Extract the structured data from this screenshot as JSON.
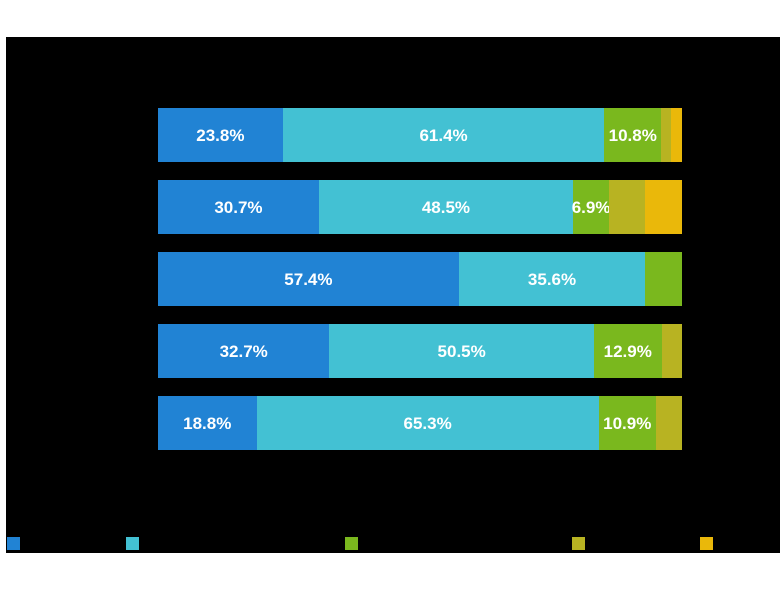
{
  "figure": {
    "background_color": "#ffffff",
    "plot_background_color": "#000000"
  },
  "chart_data": {
    "type": "bar",
    "orientation": "horizontal-stacked",
    "unit": "percent",
    "x_range": [
      0,
      100
    ],
    "num_rows": 5,
    "series": [
      {
        "name": "blue",
        "color": "#2183d4",
        "values": [
          23.8,
          30.7,
          57.4,
          32.7,
          18.8
        ]
      },
      {
        "name": "cyan",
        "color": "#43c1d3",
        "values": [
          61.4,
          48.5,
          35.6,
          50.5,
          65.3
        ]
      },
      {
        "name": "green",
        "color": "#7ab81e",
        "values": [
          10.8,
          6.9,
          7.0,
          12.9,
          10.9
        ]
      },
      {
        "name": "olive",
        "color": "#b8b322",
        "values": [
          2.0,
          6.9,
          0,
          3.9,
          5.0
        ]
      },
      {
        "name": "yellow",
        "color": "#eab80a",
        "values": [
          2.0,
          7.0,
          0,
          0,
          0
        ]
      }
    ],
    "visible_value_labels": [
      [
        "23.8%",
        "61.4%",
        "10.8%",
        "",
        ""
      ],
      [
        "30.7%",
        "48.5%",
        "6.9%",
        "",
        ""
      ],
      [
        "57.4%",
        "35.6%",
        "",
        "",
        ""
      ],
      [
        "32.7%",
        "50.5%",
        "12.9%",
        "",
        ""
      ],
      [
        "18.8%",
        "65.3%",
        "10.9%",
        "",
        ""
      ]
    ],
    "value_label_color": "#ffffff",
    "legend": {
      "position": "bottom",
      "swatches": [
        {
          "name": "blue",
          "color": "#2183d4"
        },
        {
          "name": "cyan",
          "color": "#43c1d3"
        },
        {
          "name": "green",
          "color": "#7ab81e"
        },
        {
          "name": "olive",
          "color": "#b8b322"
        },
        {
          "name": "yellow",
          "color": "#eab80a"
        }
      ]
    }
  }
}
